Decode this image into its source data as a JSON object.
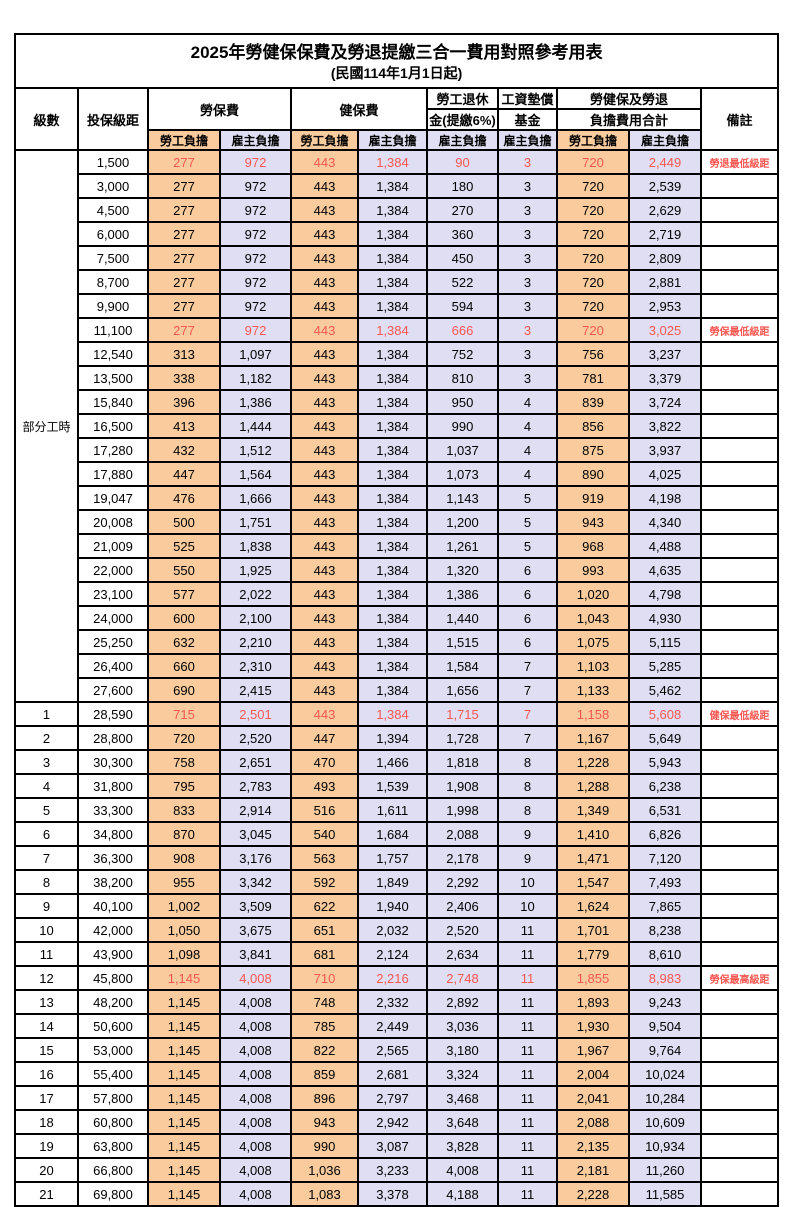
{
  "title": "2025年勞健保保費及勞退提繳三合一費用對照參考用表",
  "subtitle": "(民國114年1月1日起)",
  "colors": {
    "employee_bg": "#F9CB9D",
    "employer_bg": "#E0DEF2",
    "highlight_red": "#F85752",
    "border": "#000000"
  },
  "header": {
    "level": "級數",
    "bracket": "投保級距",
    "labor_insurance": "勞保費",
    "health_insurance": "健保費",
    "pension_line1": "勞工退休",
    "pension_line2": "金(提繳6%)",
    "wage_fund_line1": "工資墊償",
    "wage_fund_line2": "基金",
    "total_line1": "勞健保及勞退",
    "total_line2": "負擔費用合計",
    "remark": "備註",
    "employee_share": "勞工負擔",
    "employer_share": "雇主負擔"
  },
  "part_time_label": "部分工時",
  "chart_data": {
    "type": "table",
    "columns": [
      "級數",
      "投保級距",
      "勞保費-勞工負擔",
      "勞保費-雇主負擔",
      "健保費-勞工負擔",
      "健保費-雇主負擔",
      "勞工退休金(提繳6%)-雇主負擔",
      "工資墊償基金-雇主負擔",
      "合計-勞工負擔",
      "合計-雇主負擔",
      "備註"
    ],
    "rows_ref": "see rows[]"
  },
  "rows": [
    {
      "level": "",
      "bracket": "1,500",
      "li_emp": "277",
      "li_er": "972",
      "hi_emp": "443",
      "hi_er": "1,384",
      "pension": "90",
      "fund": "3",
      "tot_emp": "720",
      "tot_er": "2,449",
      "remark": "勞退最低級距",
      "red": true
    },
    {
      "level": "",
      "bracket": "3,000",
      "li_emp": "277",
      "li_er": "972",
      "hi_emp": "443",
      "hi_er": "1,384",
      "pension": "180",
      "fund": "3",
      "tot_emp": "720",
      "tot_er": "2,539",
      "remark": "",
      "red": false
    },
    {
      "level": "",
      "bracket": "4,500",
      "li_emp": "277",
      "li_er": "972",
      "hi_emp": "443",
      "hi_er": "1,384",
      "pension": "270",
      "fund": "3",
      "tot_emp": "720",
      "tot_er": "2,629",
      "remark": "",
      "red": false
    },
    {
      "level": "",
      "bracket": "6,000",
      "li_emp": "277",
      "li_er": "972",
      "hi_emp": "443",
      "hi_er": "1,384",
      "pension": "360",
      "fund": "3",
      "tot_emp": "720",
      "tot_er": "2,719",
      "remark": "",
      "red": false
    },
    {
      "level": "",
      "bracket": "7,500",
      "li_emp": "277",
      "li_er": "972",
      "hi_emp": "443",
      "hi_er": "1,384",
      "pension": "450",
      "fund": "3",
      "tot_emp": "720",
      "tot_er": "2,809",
      "remark": "",
      "red": false
    },
    {
      "level": "",
      "bracket": "8,700",
      "li_emp": "277",
      "li_er": "972",
      "hi_emp": "443",
      "hi_er": "1,384",
      "pension": "522",
      "fund": "3",
      "tot_emp": "720",
      "tot_er": "2,881",
      "remark": "",
      "red": false
    },
    {
      "level": "",
      "bracket": "9,900",
      "li_emp": "277",
      "li_er": "972",
      "hi_emp": "443",
      "hi_er": "1,384",
      "pension": "594",
      "fund": "3",
      "tot_emp": "720",
      "tot_er": "2,953",
      "remark": "",
      "red": false
    },
    {
      "level": "",
      "bracket": "11,100",
      "li_emp": "277",
      "li_er": "972",
      "hi_emp": "443",
      "hi_er": "1,384",
      "pension": "666",
      "fund": "3",
      "tot_emp": "720",
      "tot_er": "3,025",
      "remark": "勞保最低級距",
      "red": true
    },
    {
      "level": "",
      "bracket": "12,540",
      "li_emp": "313",
      "li_er": "1,097",
      "hi_emp": "443",
      "hi_er": "1,384",
      "pension": "752",
      "fund": "3",
      "tot_emp": "756",
      "tot_er": "3,237",
      "remark": "",
      "red": false
    },
    {
      "level": "",
      "bracket": "13,500",
      "li_emp": "338",
      "li_er": "1,182",
      "hi_emp": "443",
      "hi_er": "1,384",
      "pension": "810",
      "fund": "3",
      "tot_emp": "781",
      "tot_er": "3,379",
      "remark": "",
      "red": false
    },
    {
      "level": "",
      "bracket": "15,840",
      "li_emp": "396",
      "li_er": "1,386",
      "hi_emp": "443",
      "hi_er": "1,384",
      "pension": "950",
      "fund": "4",
      "tot_emp": "839",
      "tot_er": "3,724",
      "remark": "",
      "red": false
    },
    {
      "level": "",
      "bracket": "16,500",
      "li_emp": "413",
      "li_er": "1,444",
      "hi_emp": "443",
      "hi_er": "1,384",
      "pension": "990",
      "fund": "4",
      "tot_emp": "856",
      "tot_er": "3,822",
      "remark": "",
      "red": false
    },
    {
      "level": "",
      "bracket": "17,280",
      "li_emp": "432",
      "li_er": "1,512",
      "hi_emp": "443",
      "hi_er": "1,384",
      "pension": "1,037",
      "fund": "4",
      "tot_emp": "875",
      "tot_er": "3,937",
      "remark": "",
      "red": false
    },
    {
      "level": "",
      "bracket": "17,880",
      "li_emp": "447",
      "li_er": "1,564",
      "hi_emp": "443",
      "hi_er": "1,384",
      "pension": "1,073",
      "fund": "4",
      "tot_emp": "890",
      "tot_er": "4,025",
      "remark": "",
      "red": false
    },
    {
      "level": "",
      "bracket": "19,047",
      "li_emp": "476",
      "li_er": "1,666",
      "hi_emp": "443",
      "hi_er": "1,384",
      "pension": "1,143",
      "fund": "5",
      "tot_emp": "919",
      "tot_er": "4,198",
      "remark": "",
      "red": false
    },
    {
      "level": "",
      "bracket": "20,008",
      "li_emp": "500",
      "li_er": "1,751",
      "hi_emp": "443",
      "hi_er": "1,384",
      "pension": "1,200",
      "fund": "5",
      "tot_emp": "943",
      "tot_er": "4,340",
      "remark": "",
      "red": false
    },
    {
      "level": "",
      "bracket": "21,009",
      "li_emp": "525",
      "li_er": "1,838",
      "hi_emp": "443",
      "hi_er": "1,384",
      "pension": "1,261",
      "fund": "5",
      "tot_emp": "968",
      "tot_er": "4,488",
      "remark": "",
      "red": false
    },
    {
      "level": "",
      "bracket": "22,000",
      "li_emp": "550",
      "li_er": "1,925",
      "hi_emp": "443",
      "hi_er": "1,384",
      "pension": "1,320",
      "fund": "6",
      "tot_emp": "993",
      "tot_er": "4,635",
      "remark": "",
      "red": false
    },
    {
      "level": "",
      "bracket": "23,100",
      "li_emp": "577",
      "li_er": "2,022",
      "hi_emp": "443",
      "hi_er": "1,384",
      "pension": "1,386",
      "fund": "6",
      "tot_emp": "1,020",
      "tot_er": "4,798",
      "remark": "",
      "red": false
    },
    {
      "level": "",
      "bracket": "24,000",
      "li_emp": "600",
      "li_er": "2,100",
      "hi_emp": "443",
      "hi_er": "1,384",
      "pension": "1,440",
      "fund": "6",
      "tot_emp": "1,043",
      "tot_er": "4,930",
      "remark": "",
      "red": false
    },
    {
      "level": "",
      "bracket": "25,250",
      "li_emp": "632",
      "li_er": "2,210",
      "hi_emp": "443",
      "hi_er": "1,384",
      "pension": "1,515",
      "fund": "6",
      "tot_emp": "1,075",
      "tot_er": "5,115",
      "remark": "",
      "red": false
    },
    {
      "level": "",
      "bracket": "26,400",
      "li_emp": "660",
      "li_er": "2,310",
      "hi_emp": "443",
      "hi_er": "1,384",
      "pension": "1,584",
      "fund": "7",
      "tot_emp": "1,103",
      "tot_er": "5,285",
      "remark": "",
      "red": false
    },
    {
      "level": "",
      "bracket": "27,600",
      "li_emp": "690",
      "li_er": "2,415",
      "hi_emp": "443",
      "hi_er": "1,384",
      "pension": "1,656",
      "fund": "7",
      "tot_emp": "1,133",
      "tot_er": "5,462",
      "remark": "",
      "red": false
    },
    {
      "level": "1",
      "bracket": "28,590",
      "li_emp": "715",
      "li_er": "2,501",
      "hi_emp": "443",
      "hi_er": "1,384",
      "pension": "1,715",
      "fund": "7",
      "tot_emp": "1,158",
      "tot_er": "5,608",
      "remark": "健保最低級距",
      "red": true
    },
    {
      "level": "2",
      "bracket": "28,800",
      "li_emp": "720",
      "li_er": "2,520",
      "hi_emp": "447",
      "hi_er": "1,394",
      "pension": "1,728",
      "fund": "7",
      "tot_emp": "1,167",
      "tot_er": "5,649",
      "remark": "",
      "red": false
    },
    {
      "level": "3",
      "bracket": "30,300",
      "li_emp": "758",
      "li_er": "2,651",
      "hi_emp": "470",
      "hi_er": "1,466",
      "pension": "1,818",
      "fund": "8",
      "tot_emp": "1,228",
      "tot_er": "5,943",
      "remark": "",
      "red": false
    },
    {
      "level": "4",
      "bracket": "31,800",
      "li_emp": "795",
      "li_er": "2,783",
      "hi_emp": "493",
      "hi_er": "1,539",
      "pension": "1,908",
      "fund": "8",
      "tot_emp": "1,288",
      "tot_er": "6,238",
      "remark": "",
      "red": false
    },
    {
      "level": "5",
      "bracket": "33,300",
      "li_emp": "833",
      "li_er": "2,914",
      "hi_emp": "516",
      "hi_er": "1,611",
      "pension": "1,998",
      "fund": "8",
      "tot_emp": "1,349",
      "tot_er": "6,531",
      "remark": "",
      "red": false
    },
    {
      "level": "6",
      "bracket": "34,800",
      "li_emp": "870",
      "li_er": "3,045",
      "hi_emp": "540",
      "hi_er": "1,684",
      "pension": "2,088",
      "fund": "9",
      "tot_emp": "1,410",
      "tot_er": "6,826",
      "remark": "",
      "red": false
    },
    {
      "level": "7",
      "bracket": "36,300",
      "li_emp": "908",
      "li_er": "3,176",
      "hi_emp": "563",
      "hi_er": "1,757",
      "pension": "2,178",
      "fund": "9",
      "tot_emp": "1,471",
      "tot_er": "7,120",
      "remark": "",
      "red": false
    },
    {
      "level": "8",
      "bracket": "38,200",
      "li_emp": "955",
      "li_er": "3,342",
      "hi_emp": "592",
      "hi_er": "1,849",
      "pension": "2,292",
      "fund": "10",
      "tot_emp": "1,547",
      "tot_er": "7,493",
      "remark": "",
      "red": false
    },
    {
      "level": "9",
      "bracket": "40,100",
      "li_emp": "1,002",
      "li_er": "3,509",
      "hi_emp": "622",
      "hi_er": "1,940",
      "pension": "2,406",
      "fund": "10",
      "tot_emp": "1,624",
      "tot_er": "7,865",
      "remark": "",
      "red": false
    },
    {
      "level": "10",
      "bracket": "42,000",
      "li_emp": "1,050",
      "li_er": "3,675",
      "hi_emp": "651",
      "hi_er": "2,032",
      "pension": "2,520",
      "fund": "11",
      "tot_emp": "1,701",
      "tot_er": "8,238",
      "remark": "",
      "red": false
    },
    {
      "level": "11",
      "bracket": "43,900",
      "li_emp": "1,098",
      "li_er": "3,841",
      "hi_emp": "681",
      "hi_er": "2,124",
      "pension": "2,634",
      "fund": "11",
      "tot_emp": "1,779",
      "tot_er": "8,610",
      "remark": "",
      "red": false
    },
    {
      "level": "12",
      "bracket": "45,800",
      "li_emp": "1,145",
      "li_er": "4,008",
      "hi_emp": "710",
      "hi_er": "2,216",
      "pension": "2,748",
      "fund": "11",
      "tot_emp": "1,855",
      "tot_er": "8,983",
      "remark": "勞保最高級距",
      "red": true
    },
    {
      "level": "13",
      "bracket": "48,200",
      "li_emp": "1,145",
      "li_er": "4,008",
      "hi_emp": "748",
      "hi_er": "2,332",
      "pension": "2,892",
      "fund": "11",
      "tot_emp": "1,893",
      "tot_er": "9,243",
      "remark": "",
      "red": false
    },
    {
      "level": "14",
      "bracket": "50,600",
      "li_emp": "1,145",
      "li_er": "4,008",
      "hi_emp": "785",
      "hi_er": "2,449",
      "pension": "3,036",
      "fund": "11",
      "tot_emp": "1,930",
      "tot_er": "9,504",
      "remark": "",
      "red": false
    },
    {
      "level": "15",
      "bracket": "53,000",
      "li_emp": "1,145",
      "li_er": "4,008",
      "hi_emp": "822",
      "hi_er": "2,565",
      "pension": "3,180",
      "fund": "11",
      "tot_emp": "1,967",
      "tot_er": "9,764",
      "remark": "",
      "red": false
    },
    {
      "level": "16",
      "bracket": "55,400",
      "li_emp": "1,145",
      "li_er": "4,008",
      "hi_emp": "859",
      "hi_er": "2,681",
      "pension": "3,324",
      "fund": "11",
      "tot_emp": "2,004",
      "tot_er": "10,024",
      "remark": "",
      "red": false
    },
    {
      "level": "17",
      "bracket": "57,800",
      "li_emp": "1,145",
      "li_er": "4,008",
      "hi_emp": "896",
      "hi_er": "2,797",
      "pension": "3,468",
      "fund": "11",
      "tot_emp": "2,041",
      "tot_er": "10,284",
      "remark": "",
      "red": false
    },
    {
      "level": "18",
      "bracket": "60,800",
      "li_emp": "1,145",
      "li_er": "4,008",
      "hi_emp": "943",
      "hi_er": "2,942",
      "pension": "3,648",
      "fund": "11",
      "tot_emp": "2,088",
      "tot_er": "10,609",
      "remark": "",
      "red": false
    },
    {
      "level": "19",
      "bracket": "63,800",
      "li_emp": "1,145",
      "li_er": "4,008",
      "hi_emp": "990",
      "hi_er": "3,087",
      "pension": "3,828",
      "fund": "11",
      "tot_emp": "2,135",
      "tot_er": "10,934",
      "remark": "",
      "red": false
    },
    {
      "level": "20",
      "bracket": "66,800",
      "li_emp": "1,145",
      "li_er": "4,008",
      "hi_emp": "1,036",
      "hi_er": "3,233",
      "pension": "4,008",
      "fund": "11",
      "tot_emp": "2,181",
      "tot_er": "11,260",
      "remark": "",
      "red": false
    },
    {
      "level": "21",
      "bracket": "69,800",
      "li_emp": "1,145",
      "li_er": "4,008",
      "hi_emp": "1,083",
      "hi_er": "3,378",
      "pension": "4,188",
      "fund": "11",
      "tot_emp": "2,228",
      "tot_er": "11,585",
      "remark": "",
      "red": false
    }
  ]
}
